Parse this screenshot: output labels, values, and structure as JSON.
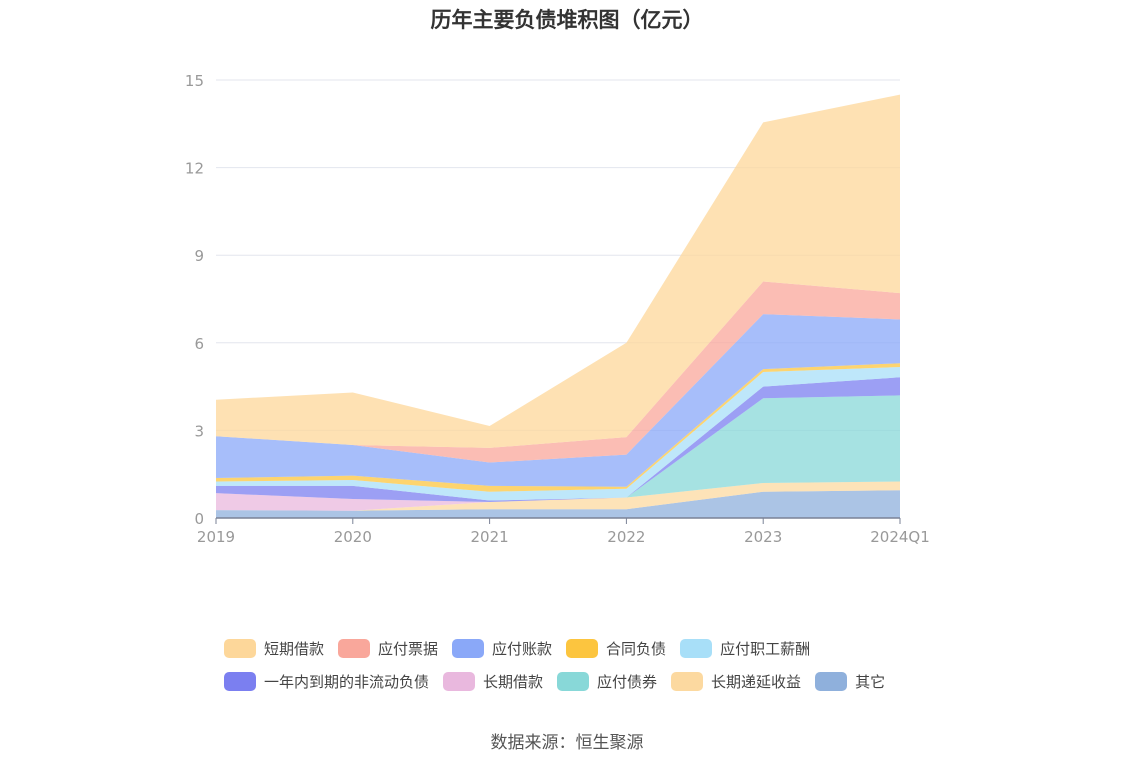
{
  "chart_data": {
    "type": "area",
    "stacked": true,
    "title": "历年主要负债堆积图（亿元）",
    "categories": [
      "2019",
      "2020",
      "2021",
      "2022",
      "2023",
      "2024Q1"
    ],
    "ylim": [
      0,
      15
    ],
    "yticks": [
      "0",
      "3",
      "6",
      "9",
      "12",
      "15"
    ],
    "grid": true,
    "legend_position": "bottom",
    "series": [
      {
        "name": "其它",
        "color": "#8fb0dc",
        "values": [
          0.27,
          0.25,
          0.3,
          0.3,
          0.9,
          0.95
        ]
      },
      {
        "name": "长期递延收益",
        "color": "#fcd9a0",
        "values": [
          0.0,
          0.0,
          0.25,
          0.4,
          0.3,
          0.3
        ]
      },
      {
        "name": "应付债券",
        "color": "#88d8d8",
        "values": [
          0.0,
          0.0,
          0.0,
          0.0,
          2.9,
          2.95
        ]
      },
      {
        "name": "长期借款",
        "color": "#e9b8de",
        "values": [
          0.58,
          0.4,
          0.0,
          0.0,
          0.0,
          0.0
        ]
      },
      {
        "name": "一年内到期的非流动负债",
        "color": "#7b7ff0",
        "values": [
          0.25,
          0.45,
          0.05,
          0.0,
          0.4,
          0.62
        ]
      },
      {
        "name": "应付职工薪酬",
        "color": "#a8dff8",
        "values": [
          0.15,
          0.2,
          0.3,
          0.3,
          0.5,
          0.35
        ]
      },
      {
        "name": "合同负债",
        "color": "#fcc53f",
        "values": [
          0.12,
          0.15,
          0.2,
          0.07,
          0.1,
          0.13
        ]
      },
      {
        "name": "应付账款",
        "color": "#8aa8f8",
        "values": [
          1.43,
          1.05,
          0.8,
          1.1,
          1.88,
          1.5
        ]
      },
      {
        "name": "应付票据",
        "color": "#f9a79b",
        "values": [
          0.0,
          0.0,
          0.5,
          0.6,
          1.12,
          0.9
        ]
      },
      {
        "name": "短期借款",
        "color": "#fdd79a",
        "values": [
          1.25,
          1.8,
          0.75,
          3.23,
          5.45,
          6.8
        ]
      }
    ]
  },
  "legend": {
    "row1": [
      "短期借款",
      "应付票据",
      "应付账款",
      "合同负债",
      "应付职工薪酬"
    ],
    "row2": [
      "一年内到期的非流动负债",
      "长期借款",
      "应付债券",
      "长期递延收益",
      "其它"
    ]
  },
  "source": "数据来源：恒生聚源"
}
